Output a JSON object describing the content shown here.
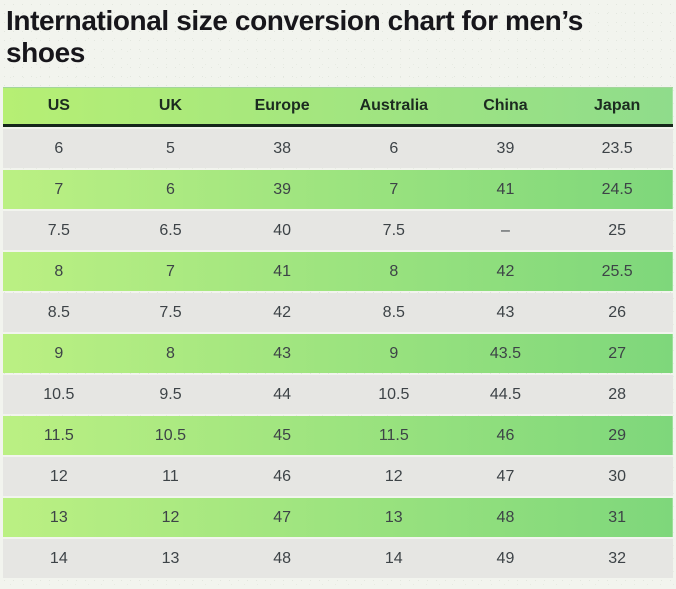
{
  "page": {
    "background_color": "#f2f4ee",
    "title_color": "#17161b"
  },
  "colors": {
    "header_gradient_left": "#b6ef74",
    "header_gradient_right": "#8fdc8b",
    "header_underline": "#15271a",
    "row_green_gradient_left": "#bbf083",
    "row_green_gradient_right": "#7ed77b",
    "row_gray": "#e6e6e3",
    "cell_text": "#3d4347",
    "header_text": "#1c2b20"
  },
  "chart_data": {
    "type": "table",
    "title": "International size conversion chart for men’s shoes",
    "columns": [
      "US",
      "UK",
      "Europe",
      "Australia",
      "China",
      "Japan"
    ],
    "rows": [
      [
        "6",
        "5",
        "38",
        "6",
        "39",
        "23.5"
      ],
      [
        "7",
        "6",
        "39",
        "7",
        "41",
        "24.5"
      ],
      [
        "7.5",
        "6.5",
        "40",
        "7.5",
        "–",
        "25"
      ],
      [
        "8",
        "7",
        "41",
        "8",
        "42",
        "25.5"
      ],
      [
        "8.5",
        "7.5",
        "42",
        "8.5",
        "43",
        "26"
      ],
      [
        "9",
        "8",
        "43",
        "9",
        "43.5",
        "27"
      ],
      [
        "10.5",
        "9.5",
        "44",
        "10.5",
        "44.5",
        "28"
      ],
      [
        "11.5",
        "10.5",
        "45",
        "11.5",
        "46",
        "29"
      ],
      [
        "12",
        "11",
        "46",
        "12",
        "47",
        "30"
      ],
      [
        "13",
        "12",
        "47",
        "13",
        "48",
        "31"
      ],
      [
        "14",
        "13",
        "48",
        "14",
        "49",
        "32"
      ]
    ],
    "layout": {
      "row_alternation": "gray, green-gradient repeating; first data row gray",
      "grid": "off",
      "header_position": "top"
    }
  }
}
